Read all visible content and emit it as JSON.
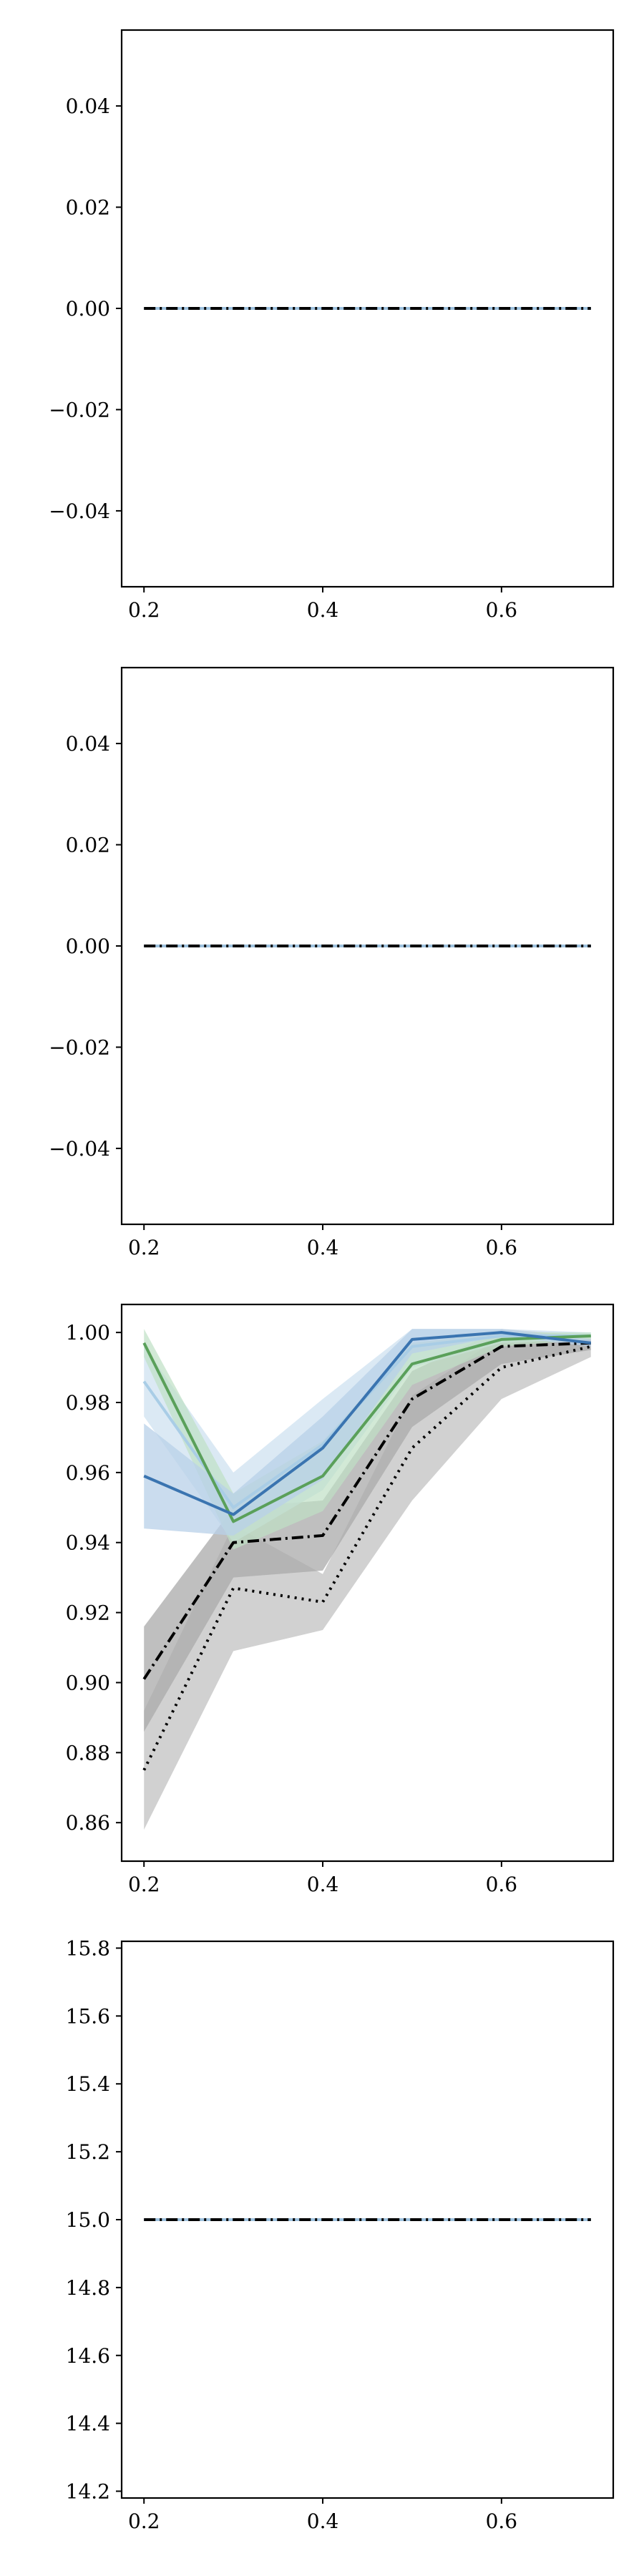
{
  "chart_data": [
    {
      "type": "line",
      "xlim": [
        0.175,
        0.725
      ],
      "ylim": [
        -0.055,
        0.055
      ],
      "xticks": [
        0.2,
        0.4,
        0.6
      ],
      "xtick_labels": [
        "0.2",
        "0.4",
        "0.6"
      ],
      "yticks": [
        -0.04,
        -0.02,
        0.0,
        0.02,
        0.04
      ],
      "ytick_labels": [
        "−0.04",
        "−0.02",
        "0.00",
        "0.02",
        "0.04"
      ],
      "x": [
        0.2,
        0.3,
        0.4,
        0.5,
        0.6,
        0.7
      ],
      "series": [
        {
          "values": [
            0,
            0,
            0,
            0,
            0,
            0
          ],
          "color": "#3a74b0",
          "style": "solid"
        },
        {
          "values": [
            0,
            0,
            0,
            0,
            0,
            0
          ],
          "color": "#9ec2df",
          "style": "solid"
        },
        {
          "values": [
            0,
            0,
            0,
            0,
            0,
            0
          ],
          "color": "#000000",
          "style": "dashdot"
        }
      ],
      "grid": false
    },
    {
      "type": "line",
      "xlim": [
        0.175,
        0.725
      ],
      "ylim": [
        -0.055,
        0.055
      ],
      "xticks": [
        0.2,
        0.4,
        0.6
      ],
      "xtick_labels": [
        "0.2",
        "0.4",
        "0.6"
      ],
      "yticks": [
        -0.04,
        -0.02,
        0.0,
        0.02,
        0.04
      ],
      "ytick_labels": [
        "−0.04",
        "−0.02",
        "0.00",
        "0.02",
        "0.04"
      ],
      "x": [
        0.2,
        0.3,
        0.4,
        0.5,
        0.6,
        0.7
      ],
      "series": [
        {
          "values": [
            0,
            0,
            0,
            0,
            0,
            0
          ],
          "color": "#3a74b0",
          "style": "solid"
        },
        {
          "values": [
            0,
            0,
            0,
            0,
            0,
            0
          ],
          "color": "#9ec2df",
          "style": "solid"
        },
        {
          "values": [
            0,
            0,
            0,
            0,
            0,
            0
          ],
          "color": "#000000",
          "style": "dashdot"
        }
      ],
      "grid": false
    },
    {
      "type": "line",
      "xlim": [
        0.175,
        0.725
      ],
      "ylim": [
        0.849,
        1.008
      ],
      "xticks": [
        0.2,
        0.4,
        0.6
      ],
      "xtick_labels": [
        "0.2",
        "0.4",
        "0.6"
      ],
      "yticks": [
        0.86,
        0.88,
        0.9,
        0.92,
        0.94,
        0.96,
        0.98,
        1.0
      ],
      "ytick_labels": [
        "0.86",
        "0.88",
        "0.90",
        "0.92",
        "0.94",
        "0.96",
        "0.98",
        "1.00"
      ],
      "x": [
        0.2,
        0.3,
        0.4,
        0.5,
        0.6,
        0.7
      ],
      "series": [
        {
          "values": [
            0.875,
            0.927,
            0.923,
            0.967,
            0.99,
            0.996
          ],
          "color": "#000000",
          "style": "dotted",
          "band_low": [
            0.858,
            0.909,
            0.915,
            0.952,
            0.981,
            0.993
          ],
          "band_high": [
            0.892,
            0.945,
            0.931,
            0.982,
            0.999,
            0.999
          ],
          "band_color": "#c9c9c9",
          "band_opacity": 0.85
        },
        {
          "values": [
            0.901,
            0.94,
            0.942,
            0.981,
            0.996,
            0.997
          ],
          "color": "#000000",
          "style": "dashdot",
          "band_low": [
            0.886,
            0.93,
            0.932,
            0.973,
            0.991,
            0.995
          ],
          "band_high": [
            0.916,
            0.95,
            0.952,
            0.989,
            1.001,
            0.999
          ],
          "band_color": "#a9a9a9",
          "band_opacity": 0.75
        },
        {
          "values": [
            0.986,
            0.95,
            0.968,
            0.996,
            0.999,
            0.999
          ],
          "color": "#a9cde6",
          "style": "solid",
          "band_low": [
            0.976,
            0.94,
            0.955,
            0.99,
            0.997,
            0.998
          ],
          "band_high": [
            0.996,
            0.96,
            0.981,
            1.001,
            1.001,
            1.0
          ],
          "band_color": "#cfe1f0",
          "band_opacity": 0.75
        },
        {
          "values": [
            0.997,
            0.946,
            0.959,
            0.991,
            0.998,
            0.999
          ],
          "color": "#5aa05a",
          "style": "solid",
          "band_low": [
            0.993,
            0.938,
            0.949,
            0.985,
            0.996,
            0.998
          ],
          "band_high": [
            1.001,
            0.954,
            0.969,
            0.997,
            1.0,
            1.0
          ],
          "band_color": "#bfe0c4",
          "band_opacity": 0.7
        },
        {
          "values": [
            0.959,
            0.948,
            0.967,
            0.998,
            1.0,
            0.997
          ],
          "color": "#3a74b0",
          "style": "solid",
          "band_low": [
            0.944,
            0.942,
            0.958,
            0.994,
            0.999,
            0.996
          ],
          "band_high": [
            0.974,
            0.954,
            0.976,
            1.001,
            1.001,
            0.998
          ],
          "band_color": "#b8d0e8",
          "band_opacity": 0.75
        }
      ],
      "grid": false
    },
    {
      "type": "line",
      "xlim": [
        0.175,
        0.725
      ],
      "ylim": [
        14.18,
        15.82
      ],
      "xticks": [
        0.2,
        0.4,
        0.6
      ],
      "xtick_labels": [
        "0.2",
        "0.4",
        "0.6"
      ],
      "yticks": [
        14.2,
        14.4,
        14.6,
        14.8,
        15.0,
        15.2,
        15.4,
        15.6,
        15.8
      ],
      "ytick_labels": [
        "14.2",
        "14.4",
        "14.6",
        "14.8",
        "15.0",
        "15.2",
        "15.4",
        "15.6",
        "15.8"
      ],
      "x": [
        0.2,
        0.3,
        0.4,
        0.5,
        0.6,
        0.7
      ],
      "series": [
        {
          "values": [
            15,
            15,
            15,
            15,
            15,
            15
          ],
          "color": "#3a74b0",
          "style": "solid"
        },
        {
          "values": [
            15,
            15,
            15,
            15,
            15,
            15
          ],
          "color": "#9ec2df",
          "style": "solid"
        },
        {
          "values": [
            15,
            15,
            15,
            15,
            15,
            15
          ],
          "color": "#000000",
          "style": "dashdot"
        }
      ],
      "grid": false
    }
  ]
}
